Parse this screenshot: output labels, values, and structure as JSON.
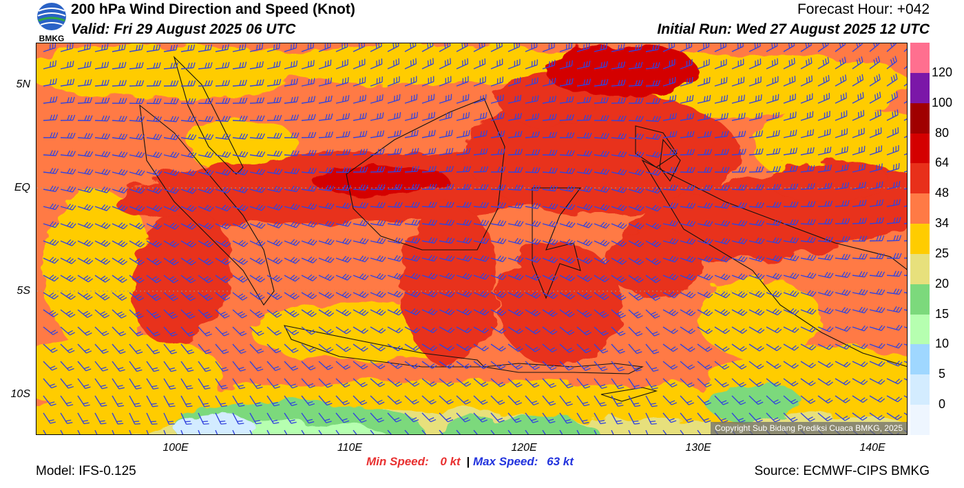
{
  "header": {
    "title": "200 hPa Wind Direction and Speed (Knot)",
    "valid": "Valid: Fri 29 August 2025 06 UTC",
    "forecast_hour": "Forecast Hour: +042",
    "initial_run": "Initial Run: Wed 27 August 2025 12 UTC",
    "logo_text": "BMKG"
  },
  "map": {
    "lat_labels": [
      "5N",
      "EQ",
      "5S",
      "10S"
    ],
    "lon_labels": [
      "100E",
      "110E",
      "120E",
      "130E",
      "140E"
    ],
    "copyright": "Copyright Sub Bidang Prediksi Cuaca BMKG, 2025",
    "barb_color": "#3344dd"
  },
  "colorbar": {
    "labels": [
      "120",
      "100",
      "80",
      "64",
      "48",
      "34",
      "25",
      "20",
      "15",
      "10",
      "5",
      "0"
    ],
    "colors": [
      "#ff6f8f",
      "#7b17a8",
      "#a00000",
      "#d40000",
      "#e8301a",
      "#ff7a45",
      "#ffcc00",
      "#e7e07c",
      "#7cd97c",
      "#b6ffb0",
      "#9fd7ff",
      "#d3ecff",
      "#eef6ff"
    ]
  },
  "footer": {
    "model": "Model: IFS-0.125",
    "min_label": "Min Speed:",
    "min_value": "0 kt",
    "separator": "|",
    "max_label": "Max Speed:",
    "max_value": "63 kt",
    "source": "Source: ECMWF-CIPS BMKG",
    "min_color": "#e83030",
    "max_color": "#2233dd"
  }
}
